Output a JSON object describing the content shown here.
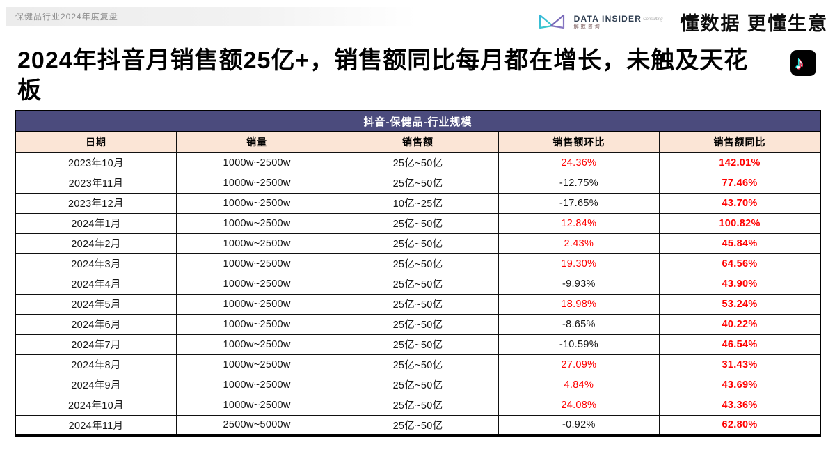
{
  "meta_strip": {
    "label": "保健品行业2024年度复盘"
  },
  "brand": {
    "logo_tag": "Consulting",
    "logo_name": "DATA INSIDER",
    "logo_sub": "解数咨询",
    "slogan": "懂数据 更懂生意"
  },
  "title": {
    "text": "2024年抖音月销售额25亿+，销售额同比每月都在增长，未触及天花板"
  },
  "table": {
    "title": "抖音-保健品-行业规模",
    "columns": [
      "日期",
      "销量",
      "销售额",
      "销售额环比",
      "销售额同比"
    ],
    "rows": [
      [
        "2023年10月",
        "1000w~2500w",
        "25亿~50亿",
        "24.36%",
        "142.01%"
      ],
      [
        "2023年11月",
        "1000w~2500w",
        "25亿~50亿",
        "-12.75%",
        "77.46%"
      ],
      [
        "2023年12月",
        "1000w~2500w",
        "10亿~25亿",
        "-17.65%",
        "43.70%"
      ],
      [
        "2024年1月",
        "1000w~2500w",
        "25亿~50亿",
        "12.84%",
        "100.82%"
      ],
      [
        "2024年2月",
        "1000w~2500w",
        "25亿~50亿",
        "2.43%",
        "45.84%"
      ],
      [
        "2024年3月",
        "1000w~2500w",
        "25亿~50亿",
        "19.30%",
        "64.56%"
      ],
      [
        "2024年4月",
        "1000w~2500w",
        "25亿~50亿",
        "-9.93%",
        "43.90%"
      ],
      [
        "2024年5月",
        "1000w~2500w",
        "25亿~50亿",
        "18.98%",
        "53.24%"
      ],
      [
        "2024年6月",
        "1000w~2500w",
        "25亿~50亿",
        "-8.65%",
        "40.22%"
      ],
      [
        "2024年7月",
        "1000w~2500w",
        "25亿~50亿",
        "-10.59%",
        "46.54%"
      ],
      [
        "2024年8月",
        "1000w~2500w",
        "25亿~50亿",
        "27.09%",
        "31.43%"
      ],
      [
        "2024年9月",
        "1000w~2500w",
        "25亿~50亿",
        "4.84%",
        "43.69%"
      ],
      [
        "2024年10月",
        "1000w~2500w",
        "25亿~50亿",
        "24.08%",
        "43.36%"
      ],
      [
        "2024年11月",
        "2500w~5000w",
        "25亿~50亿",
        "-0.92%",
        "62.80%"
      ]
    ],
    "colors": {
      "title_bg": "#4B4B7D",
      "header_bg": "#FBE5D6",
      "highlight": "#FF0000"
    }
  }
}
